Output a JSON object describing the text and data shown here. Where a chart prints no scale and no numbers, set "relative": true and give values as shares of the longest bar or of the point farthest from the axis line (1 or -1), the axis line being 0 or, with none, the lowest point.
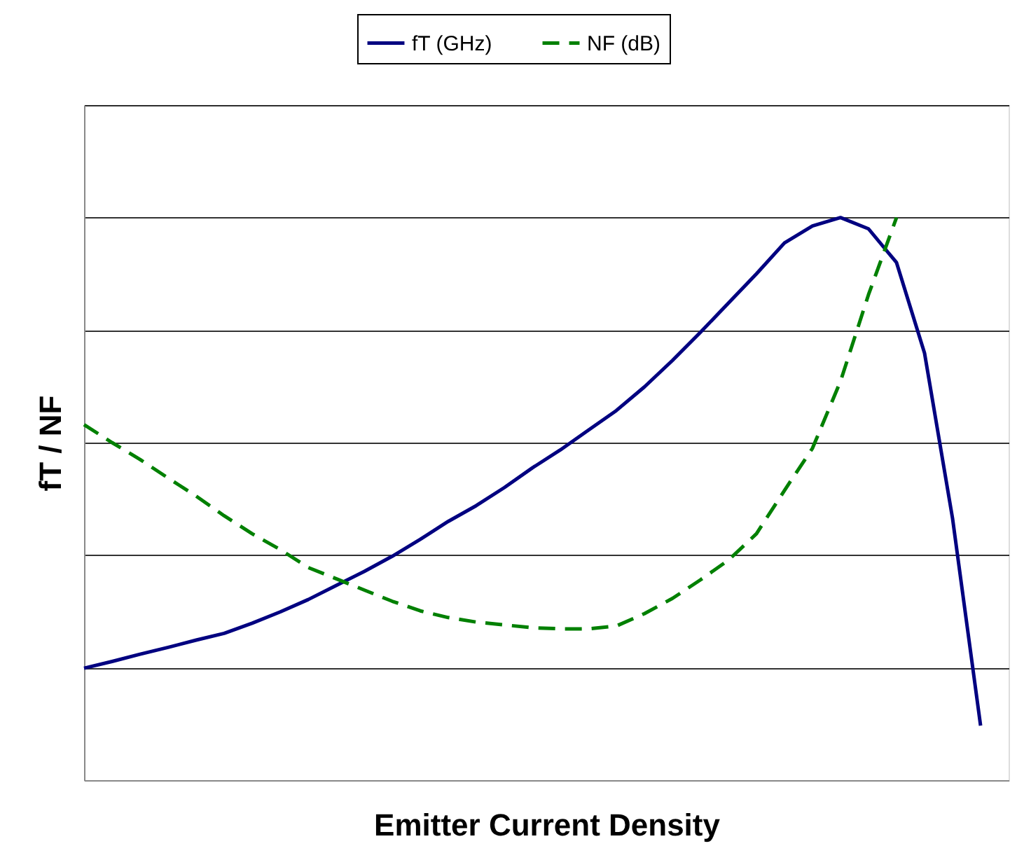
{
  "chart_data": {
    "type": "line",
    "relative": true,
    "xlabel": "Emitter Current Density",
    "ylabel": "fT / NF",
    "categories": [
      null,
      null,
      null,
      null,
      null,
      null,
      null,
      null,
      null,
      null,
      null,
      null,
      null,
      null,
      null,
      null,
      null,
      null,
      null,
      null,
      null,
      null,
      null,
      null,
      null,
      null,
      null,
      null,
      null,
      null,
      null,
      null,
      null
    ],
    "series": [
      {
        "name": "fT (GHz)",
        "color": "#000080",
        "line_style": "solid",
        "values": [
          0.199,
          0.211,
          0.224,
          0.236,
          0.249,
          0.261,
          0.279,
          0.299,
          0.321,
          0.346,
          0.371,
          0.398,
          0.428,
          0.46,
          0.488,
          0.52,
          0.555,
          0.587,
          0.622,
          0.657,
          0.699,
          0.746,
          0.796,
          0.848,
          0.9,
          0.955,
          0.985,
          1,
          0.98,
          0.92,
          0.759,
          0.465,
          0.097
        ]
      },
      {
        "name": "NF (dB)",
        "color": "#008000",
        "line_style": "dashed",
        "values": [
          0.632,
          0.6,
          0.57,
          0.537,
          0.505,
          0.47,
          0.438,
          0.41,
          0.378,
          0.358,
          0.338,
          0.318,
          0.301,
          0.289,
          0.281,
          0.276,
          0.271,
          0.269,
          0.269,
          0.274,
          0.296,
          0.323,
          0.356,
          0.391,
          0.438,
          0.515,
          0.59,
          0.709,
          0.863,
          1,
          null,
          null,
          null
        ]
      }
    ],
    "grid": "y",
    "legend": "top",
    "marker": "none"
  }
}
